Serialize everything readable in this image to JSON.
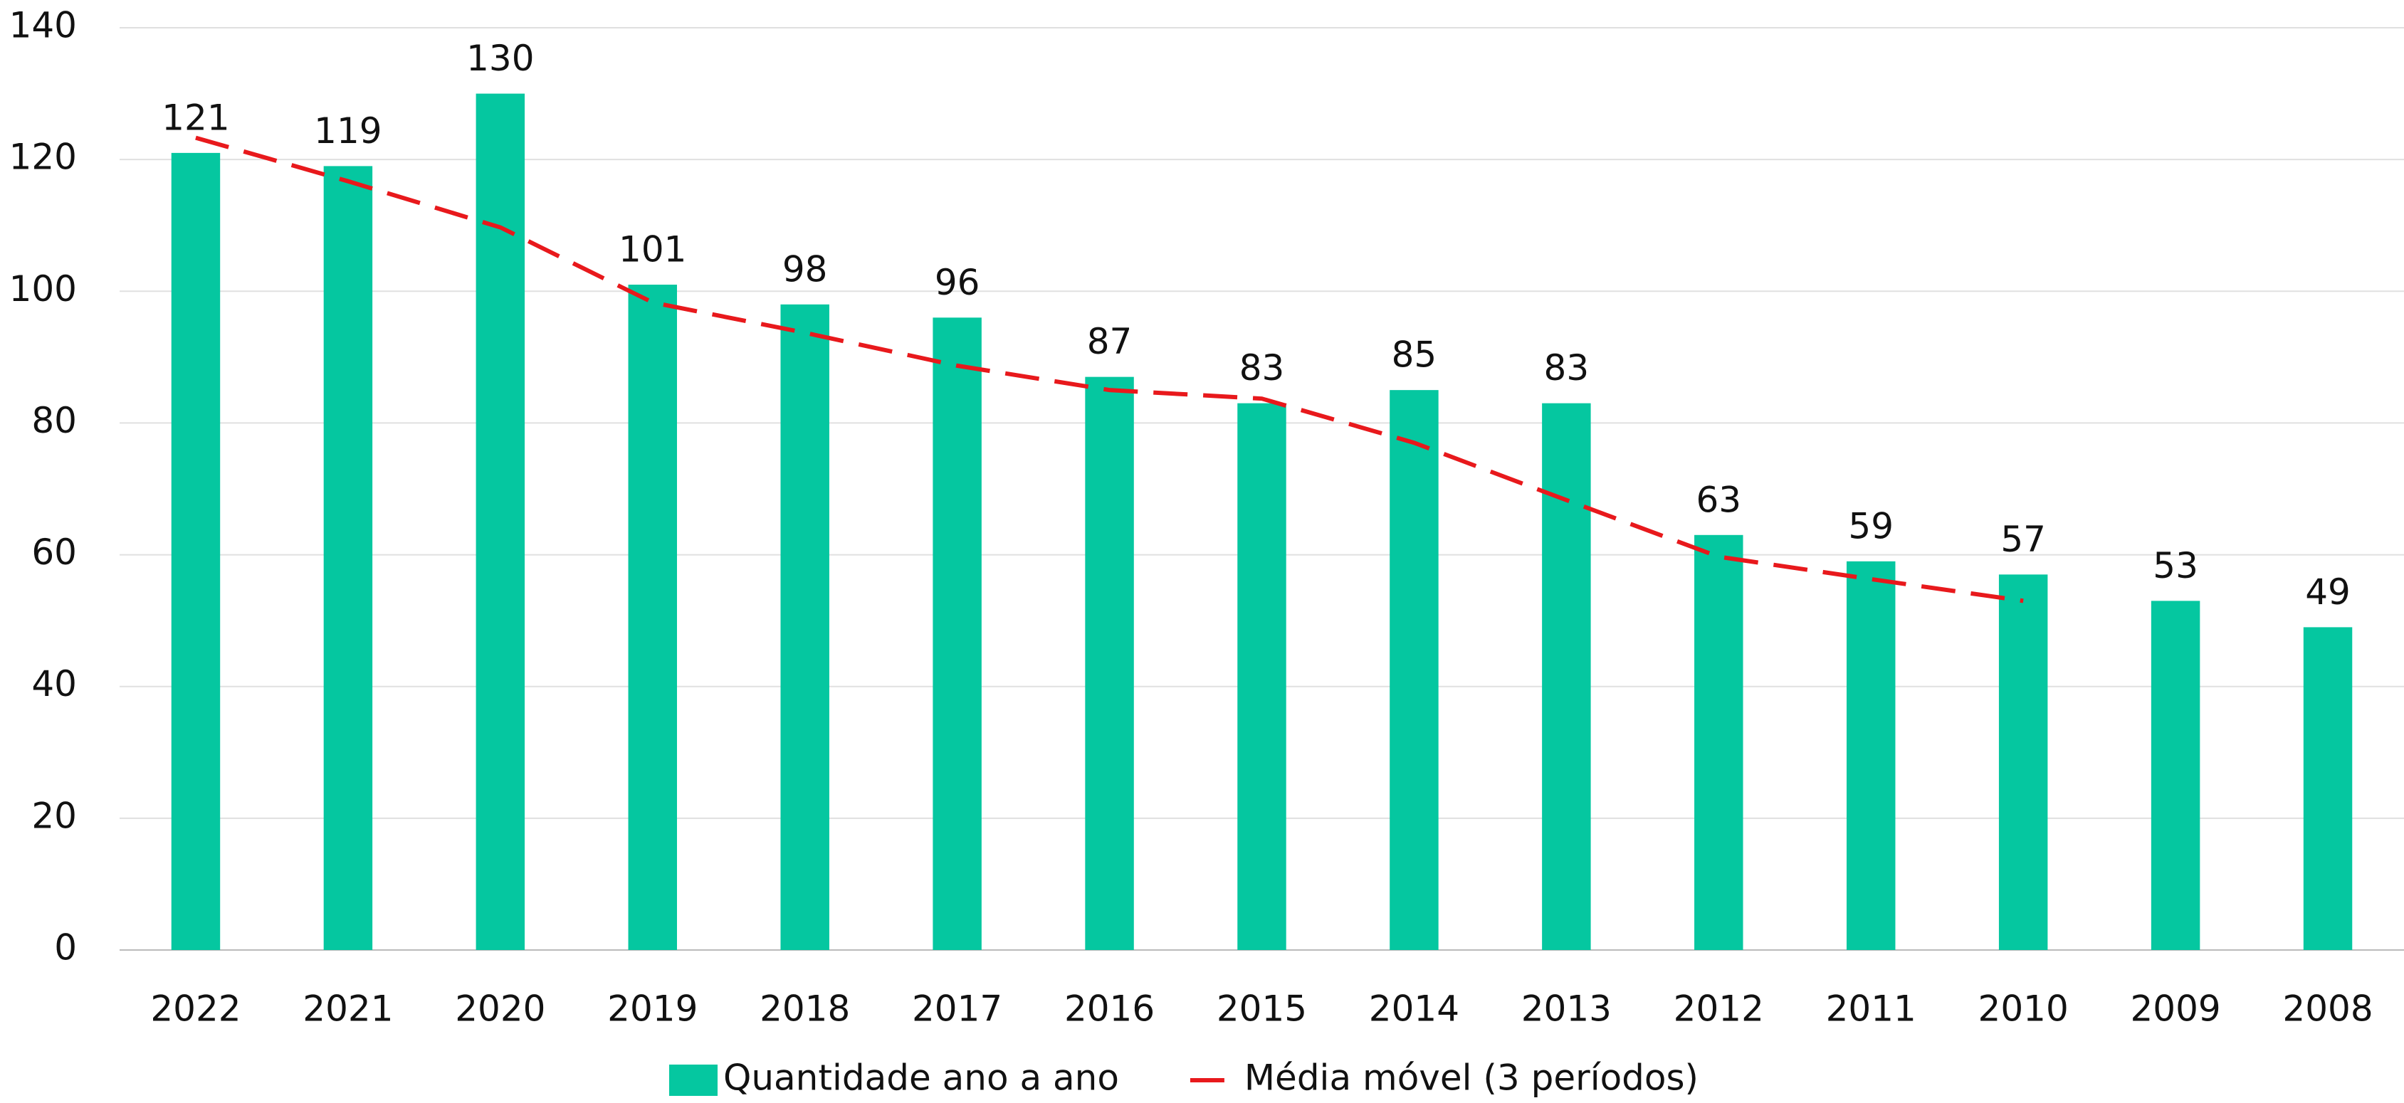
{
  "chart_data": {
    "type": "bar",
    "categories": [
      "2022",
      "2021",
      "2020",
      "2019",
      "2018",
      "2017",
      "2016",
      "2015",
      "2014",
      "2013",
      "2012",
      "2011",
      "2010",
      "2009",
      "2008"
    ],
    "series": [
      {
        "name": "Quantidade ano a ano",
        "type": "bar",
        "color": "#05c7a0",
        "values": [
          121,
          119,
          130,
          101,
          98,
          96,
          87,
          83,
          85,
          83,
          63,
          59,
          57,
          53,
          49
        ]
      },
      {
        "name": "Média móvel (3 períodos)",
        "type": "line",
        "color": "#e8191c",
        "dashed": true,
        "values": [
          123.3,
          116.7,
          109.7,
          98.3,
          93.7,
          88.7,
          85,
          83.7,
          77,
          68.3,
          59.7,
          56.3,
          53,
          null,
          null
        ]
      }
    ],
    "ylim": [
      0,
      140
    ],
    "yticks": [
      0,
      20,
      40,
      60,
      80,
      100,
      120,
      140
    ],
    "grid": true,
    "legend": "bottom"
  }
}
